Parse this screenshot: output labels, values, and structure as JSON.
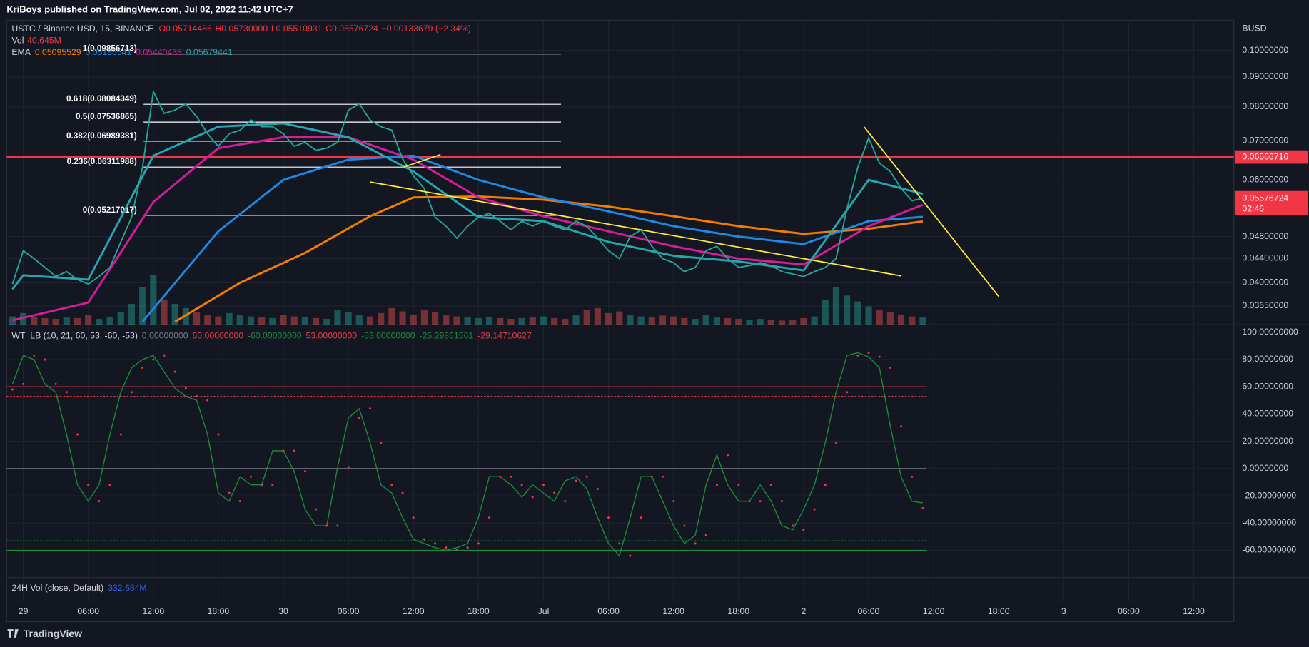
{
  "header": {
    "published": "KriBoys published on TradingView.com, Jul 02, 2022 11:42 UTC+7",
    "symbol": "USTC / Binance USD, 15, BINANCE",
    "ohlc": [
      "O0.05714486",
      "H0.05730000",
      "L0.05510931",
      "C0.05576724",
      "−0.00133679 (−2.34%)"
    ],
    "currency": "BUSD"
  },
  "vol_pane": {
    "title": "24H Vol (close, Default)",
    "value": "332.684M"
  },
  "footer": {
    "brand": "TradingView"
  },
  "chart_data": [
    {
      "type": "line",
      "log_scale": true,
      "grid": true,
      "color": "#26a69a",
      "x": [
        -1,
        0,
        1,
        2,
        3,
        4,
        5,
        6,
        7,
        8,
        9,
        10,
        11,
        12,
        13,
        14,
        15,
        16,
        17,
        18,
        19,
        20,
        21,
        22,
        23,
        24,
        25,
        26,
        27,
        28,
        29,
        30,
        31,
        32,
        33,
        34,
        35,
        36,
        37,
        38,
        39,
        40,
        41,
        42,
        43,
        44,
        45,
        46,
        47,
        48,
        49,
        50,
        51,
        52,
        53,
        54,
        55,
        56,
        57,
        58,
        59,
        60,
        61,
        62,
        63,
        64,
        65,
        66,
        67,
        68,
        69,
        70,
        71,
        72,
        73,
        74,
        75,
        76,
        77,
        78,
        79,
        80,
        81,
        82,
        83
      ],
      "values": [
        0.0398,
        0.0454,
        0.044,
        0.0425,
        0.041,
        0.0418,
        0.0405,
        0.0398,
        0.041,
        0.0425,
        0.047,
        0.0518,
        0.063,
        0.085,
        0.078,
        0.079,
        0.081,
        0.077,
        0.072,
        0.0685,
        0.072,
        0.073,
        0.076,
        0.074,
        0.074,
        0.072,
        0.0685,
        0.0696,
        0.0674,
        0.068,
        0.0696,
        0.079,
        0.081,
        0.076,
        0.074,
        0.073,
        0.0652,
        0.061,
        0.058,
        0.0518,
        0.05,
        0.0477,
        0.05,
        0.0518,
        0.0526,
        0.051,
        0.0493,
        0.051,
        0.05,
        0.051,
        0.05,
        0.0493,
        0.051,
        0.05,
        0.0477,
        0.0454,
        0.044,
        0.048,
        0.0493,
        0.0462,
        0.044,
        0.0433,
        0.0418,
        0.0425,
        0.0454,
        0.0462,
        0.044,
        0.0425,
        0.0428,
        0.0433,
        0.0428,
        0.0418,
        0.0414,
        0.041,
        0.0418,
        0.0425,
        0.044,
        0.0535,
        0.063,
        0.0708,
        0.0641,
        0.062,
        0.058,
        0.0553,
        0.05576724
      ],
      "countdown": "02:46",
      "xlim": [
        -1.53,
        111.7
      ],
      "xticks": [
        {
          "value": 0,
          "label": "29"
        },
        {
          "value": 6,
          "label": "06:00"
        },
        {
          "value": 12,
          "label": "12:00"
        },
        {
          "value": 18,
          "label": "18:00"
        },
        {
          "value": 24,
          "label": "30"
        },
        {
          "value": 30,
          "label": "06:00"
        },
        {
          "value": 36,
          "label": "12:00"
        },
        {
          "value": 42,
          "label": "18:00"
        },
        {
          "value": 48,
          "label": "Jul"
        },
        {
          "value": 54,
          "label": "06:00"
        },
        {
          "value": 60,
          "label": "12:00"
        },
        {
          "value": 66,
          "label": "18:00"
        },
        {
          "value": 72,
          "label": "2"
        },
        {
          "value": 78,
          "label": "06:00"
        },
        {
          "value": 84,
          "label": "12:00"
        },
        {
          "value": 90,
          "label": "18:00"
        },
        {
          "value": 96,
          "label": "3"
        },
        {
          "value": 102,
          "label": "06:00"
        },
        {
          "value": 108,
          "label": "12:00"
        }
      ],
      "ylim": [
        0.0339,
        0.1126
      ],
      "yticks": [
        {
          "value": 0.1,
          "label": "0.10000000"
        },
        {
          "value": 0.09,
          "label": "0.09000000"
        },
        {
          "value": 0.08,
          "label": "0.08000000"
        },
        {
          "value": 0.07,
          "label": "0.07000000"
        },
        {
          "value": 0.06,
          "label": "0.06000000"
        },
        {
          "value": 0.048,
          "label": "0.04800000"
        },
        {
          "value": 0.044,
          "label": "0.04400000"
        },
        {
          "value": 0.04,
          "label": "0.04000000"
        },
        {
          "value": 0.0365,
          "label": "0.03650000"
        }
      ],
      "horizontal_line": {
        "value": 0.06566716,
        "color": "#f23645"
      },
      "volume": {
        "label": "Vol",
        "value_label": "40.645M",
        "values": [
          10,
          14,
          9,
          8,
          7,
          9,
          8,
          12,
          7,
          9,
          15,
          25,
          45,
          60,
          30,
          25,
          20,
          15,
          12,
          10,
          14,
          12,
          10,
          9,
          8,
          12,
          10,
          9,
          8,
          7,
          18,
          15,
          12,
          10,
          14,
          20,
          16,
          12,
          18,
          15,
          12,
          10,
          9,
          8,
          9,
          8,
          7,
          8,
          9,
          10,
          8,
          7,
          12,
          18,
          20,
          14,
          16,
          12,
          10,
          9,
          11,
          10,
          8,
          7,
          12,
          9,
          8,
          7,
          6,
          7,
          6,
          5,
          6,
          8,
          10,
          30,
          45,
          35,
          28,
          22,
          18,
          15,
          12,
          10,
          9
        ]
      },
      "ema": {
        "label": "EMA",
        "series": [
          {
            "color": "#f57c00",
            "x": [
              14,
              20,
              26,
              32,
              36,
              42,
              48,
              54,
              60,
              66,
              72,
              78,
              83
            ],
            "values": [
              0.0343,
              0.04,
              0.045,
              0.052,
              0.056,
              0.0562,
              0.0555,
              0.054,
              0.052,
              0.05,
              0.0485,
              0.0495,
              0.05095529
            ]
          },
          {
            "color": "#1e88e5",
            "x": [
              11,
              18,
              24,
              30,
              36,
              42,
              48,
              54,
              60,
              66,
              72,
              78,
              83
            ],
            "values": [
              0.0343,
              0.049,
              0.06,
              0.065,
              0.066,
              0.06,
              0.056,
              0.053,
              0.05,
              0.048,
              0.0466,
              0.051,
              0.05186541
            ]
          },
          {
            "color": "#d81b9a",
            "x": [
              -1,
              6,
              12,
              18,
              24,
              30,
              36,
              42,
              48,
              54,
              60,
              66,
              72,
              78,
              83
            ],
            "values": [
              0.0345,
              0.037,
              0.055,
              0.068,
              0.071,
              0.071,
              0.065,
              0.056,
              0.052,
              0.049,
              0.0462,
              0.044,
              0.043,
              0.05,
              0.05440438
            ]
          },
          {
            "color": "#26a6b0",
            "x": [
              -1,
              0,
              6,
              12,
              18,
              24,
              30,
              36,
              42,
              48,
              54,
              60,
              66,
              72,
              78,
              83
            ],
            "values": [
              0.039,
              0.0412,
              0.0405,
              0.066,
              0.074,
              0.075,
              0.071,
              0.062,
              0.0518,
              0.051,
              0.047,
              0.0445,
              0.0435,
              0.042,
              0.06,
              0.05679441
            ]
          }
        ]
      },
      "fib": [
        {
          "value": 0.09856713,
          "label": "1(0.09856713)"
        },
        {
          "value": 0.08084349,
          "label": "0.618(0.08084349)"
        },
        {
          "value": 0.07536865,
          "label": "0.5(0.07536865)"
        },
        {
          "value": 0.06989381,
          "label": "0.382(0.06989381)"
        },
        {
          "value": 0.06311988,
          "label": "0.236(0.06311988)"
        },
        {
          "value": 0.05217017,
          "label": "0(0.05217017)"
        }
      ],
      "trendlines": [
        {
          "color": "#ffeb3b",
          "x": [
            32,
            81
          ],
          "values": [
            0.0595,
            0.0411
          ]
        },
        {
          "color": "#ffeb3b",
          "x": [
            77.6,
            90
          ],
          "values": [
            0.0739,
            0.0379
          ]
        },
        {
          "color": "#ffeb3b",
          "x": [
            35.1,
            38.5
          ],
          "values": [
            0.0631,
            0.0663
          ]
        }
      ]
    },
    {
      "type": "line",
      "title": "WT_LB (10, 21, 60, 53, -60, -53)",
      "grid": true,
      "x": [
        -1,
        0,
        1,
        2,
        3,
        4,
        5,
        6,
        7,
        8,
        9,
        10,
        11,
        12,
        13,
        14,
        15,
        16,
        17,
        18,
        19,
        20,
        21,
        22,
        23,
        24,
        25,
        26,
        27,
        28,
        29,
        30,
        31,
        32,
        33,
        34,
        35,
        36,
        37,
        38,
        39,
        40,
        41,
        42,
        43,
        44,
        45,
        46,
        47,
        48,
        49,
        50,
        51,
        52,
        53,
        54,
        55,
        56,
        57,
        58,
        59,
        60,
        61,
        62,
        63,
        64,
        65,
        66,
        67,
        68,
        69,
        70,
        71,
        72,
        73,
        74,
        75,
        76,
        77,
        78,
        79,
        80,
        81,
        82,
        83
      ],
      "series": [
        {
          "color": "#1b8a3a",
          "style": "line",
          "values": [
            62,
            83,
            80,
            62,
            56,
            25,
            -12,
            -24,
            -12,
            25,
            56,
            74,
            80,
            83,
            71,
            59,
            53,
            50,
            25,
            -18,
            -24,
            -6,
            -12,
            -12,
            13,
            13,
            -2,
            -30,
            -42,
            -42,
            1,
            37,
            44,
            19,
            -12,
            -18,
            -36,
            -52,
            -55,
            -58,
            -60,
            -58,
            -55,
            -36,
            -6,
            -6,
            -12,
            -21,
            -12,
            -18,
            -24,
            -9,
            -6,
            -15,
            -36,
            -55,
            -64,
            -36,
            -6,
            -6,
            -24,
            -42,
            -55,
            -49,
            -12,
            10,
            -12,
            -24,
            -24,
            -12,
            -24,
            -42,
            -45,
            -30,
            -12,
            19,
            56,
            83,
            85,
            82,
            74,
            31,
            -6,
            -24,
            -25.29861561
          ]
        },
        {
          "color": "#f23645",
          "style": "dots",
          "values": [
            58,
            62,
            83,
            80,
            62,
            56,
            25,
            -12,
            -24,
            -12,
            25,
            56,
            74,
            80,
            83,
            71,
            59,
            53,
            50,
            25,
            -18,
            -24,
            -6,
            -12,
            -12,
            13,
            13,
            -2,
            -30,
            -42,
            -42,
            1,
            37,
            44,
            19,
            -12,
            -18,
            -36,
            -52,
            -55,
            -58,
            -60,
            -58,
            -55,
            -36,
            -6,
            -6,
            -12,
            -21,
            -12,
            -18,
            -24,
            -9,
            -6,
            -15,
            -36,
            -55,
            -64,
            -36,
            -6,
            -6,
            -24,
            -42,
            -55,
            -49,
            -12,
            10,
            -12,
            -24,
            -24,
            -12,
            -24,
            -42,
            -45,
            -30,
            -12,
            19,
            56,
            83,
            85,
            82,
            74,
            31,
            -6,
            -29.14710627
          ]
        }
      ],
      "levels": [
        {
          "value": 0,
          "label": "0.00000000",
          "color": "#787b86"
        },
        {
          "value": 60,
          "label": "60.00000000",
          "color": "#f23645"
        },
        {
          "value": -60,
          "label": "-60.00000000",
          "color": "#1b8a3a"
        },
        {
          "value": 53,
          "label": "53.00000000",
          "color": "#f23645",
          "dotted": true
        },
        {
          "value": -53,
          "label": "-53.00000000",
          "color": "#1b8a3a",
          "dotted": true
        }
      ],
      "ylim": [
        -80,
        105.5
      ],
      "yticks": [
        {
          "value": 100,
          "label": "100.00000000"
        },
        {
          "value": 80,
          "label": "80.00000000"
        },
        {
          "value": 60,
          "label": "60.00000000"
        },
        {
          "value": 40,
          "label": "40.00000000"
        },
        {
          "value": 20,
          "label": "20.00000000"
        },
        {
          "value": 0,
          "label": "0.00000000"
        },
        {
          "value": -20,
          "label": "-20.00000000"
        },
        {
          "value": -40,
          "label": "-40.00000000"
        },
        {
          "value": -60,
          "label": "-60.00000000"
        }
      ]
    }
  ]
}
